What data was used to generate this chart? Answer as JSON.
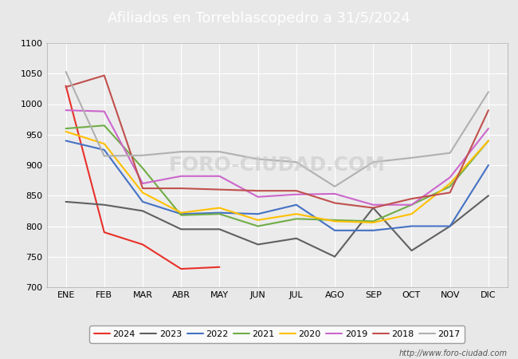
{
  "title": "Afiliados en Torreblascopedro a 31/5/2024",
  "title_bgcolor": "#4a7bc8",
  "title_color": "white",
  "ylim": [
    700,
    1100
  ],
  "yticks": [
    700,
    750,
    800,
    850,
    900,
    950,
    1000,
    1050,
    1100
  ],
  "months": [
    "ENE",
    "FEB",
    "MAR",
    "ABR",
    "MAY",
    "JUN",
    "JUL",
    "AGO",
    "SEP",
    "OCT",
    "NOV",
    "DIC"
  ],
  "watermark": "FORO-CIUDAD.COM",
  "url": "http://www.foro-ciudad.com",
  "series": {
    "2024": {
      "color": "#e8312a",
      "data": [
        1030,
        790,
        770,
        730,
        733,
        null,
        null,
        null,
        null,
        null,
        null,
        null
      ]
    },
    "2023": {
      "color": "#606060",
      "data": [
        840,
        835,
        825,
        795,
        795,
        770,
        780,
        750,
        830,
        760,
        800,
        850
      ]
    },
    "2022": {
      "color": "#4472c4",
      "data": [
        940,
        925,
        840,
        820,
        822,
        820,
        835,
        793,
        793,
        800,
        800,
        900
      ]
    },
    "2021": {
      "color": "#70ad47",
      "data": [
        960,
        965,
        895,
        818,
        820,
        800,
        812,
        810,
        808,
        835,
        865,
        940
      ]
    },
    "2020": {
      "color": "#ffc000",
      "data": [
        955,
        935,
        855,
        822,
        830,
        810,
        820,
        808,
        806,
        820,
        870,
        940
      ]
    },
    "2019": {
      "color": "#cc66cc",
      "data": [
        990,
        988,
        870,
        882,
        882,
        848,
        852,
        853,
        835,
        835,
        880,
        960
      ]
    },
    "2018": {
      "color": "#c0504d",
      "data": [
        1028,
        1047,
        862,
        862,
        860,
        858,
        858,
        838,
        830,
        845,
        855,
        990
      ]
    },
    "2017": {
      "color": "#b0b0b0",
      "data": [
        1053,
        915,
        916,
        922,
        922,
        910,
        905,
        865,
        905,
        912,
        920,
        1020
      ]
    }
  },
  "legend_order": [
    "2024",
    "2023",
    "2022",
    "2021",
    "2020",
    "2019",
    "2018",
    "2017"
  ],
  "bg_color": "#e8e8e8",
  "plot_bg_color": "#ebebeb",
  "grid_color": "white",
  "fontsize_title": 13,
  "fontsize_ticks": 8,
  "fontsize_legend": 8,
  "fontsize_watermark": 18
}
